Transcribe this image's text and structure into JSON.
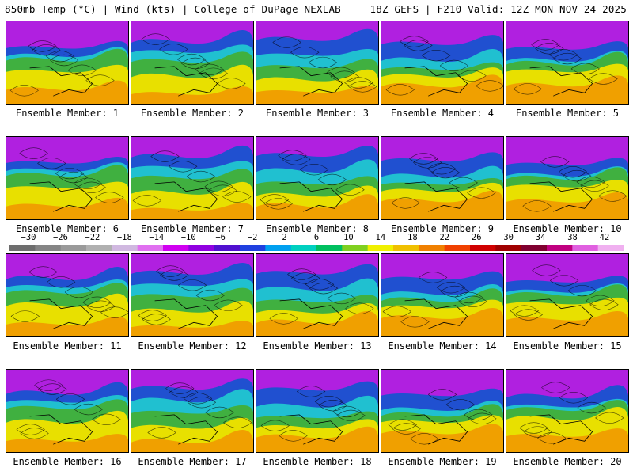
{
  "header": {
    "left": "850mb Temp (°C) | Wind (kts) | College of DuPage NEXLAB",
    "right": "18Z GEFS | F210 Valid: 12Z MON NOV 24 2025"
  },
  "panels": [
    {
      "label": "Ensemble Member: 1"
    },
    {
      "label": "Ensemble Member: 2"
    },
    {
      "label": "Ensemble Member: 3"
    },
    {
      "label": "Ensemble Member: 4"
    },
    {
      "label": "Ensemble Member: 5"
    },
    {
      "label": "Ensemble Member: 6"
    },
    {
      "label": "Ensemble Member: 7"
    },
    {
      "label": "Ensemble Member: 8"
    },
    {
      "label": "Ensemble Member: 9"
    },
    {
      "label": "Ensemble Member: 10"
    },
    {
      "label": "Ensemble Member: 11"
    },
    {
      "label": "Ensemble Member: 12"
    },
    {
      "label": "Ensemble Member: 13"
    },
    {
      "label": "Ensemble Member: 14"
    },
    {
      "label": "Ensemble Member: 15"
    },
    {
      "label": "Ensemble Member: 16"
    },
    {
      "label": "Ensemble Member: 17"
    },
    {
      "label": "Ensemble Member: 18"
    },
    {
      "label": "Ensemble Member: 19"
    },
    {
      "label": "Ensemble Member: 20"
    }
  ],
  "colorbar": {
    "labels": [
      "−30",
      "−26",
      "−22",
      "−18",
      "−14",
      "−10",
      "−6",
      "−2",
      "2",
      "6",
      "10",
      "14",
      "18",
      "22",
      "26",
      "30",
      "34",
      "38",
      "42"
    ],
    "colors": [
      "#6e6e6e",
      "#858585",
      "#9a9a9a",
      "#b0b0b0",
      "#d0b8e0",
      "#e070f0",
      "#d000f0",
      "#9000e0",
      "#5010d0",
      "#2040e0",
      "#00a0f0",
      "#00d0c0",
      "#00c060",
      "#80d020",
      "#f0f000",
      "#f0c000",
      "#f08000",
      "#f04000",
      "#d00000",
      "#a00000",
      "#800030",
      "#c00080",
      "#e060e0",
      "#f0b0f0"
    ]
  },
  "map_colors": {
    "north": "#b020e0",
    "mid": "#2050d0",
    "cyan": "#20c0d0",
    "green": "#40b040",
    "yellow": "#e8e000",
    "orange": "#f0a000"
  }
}
